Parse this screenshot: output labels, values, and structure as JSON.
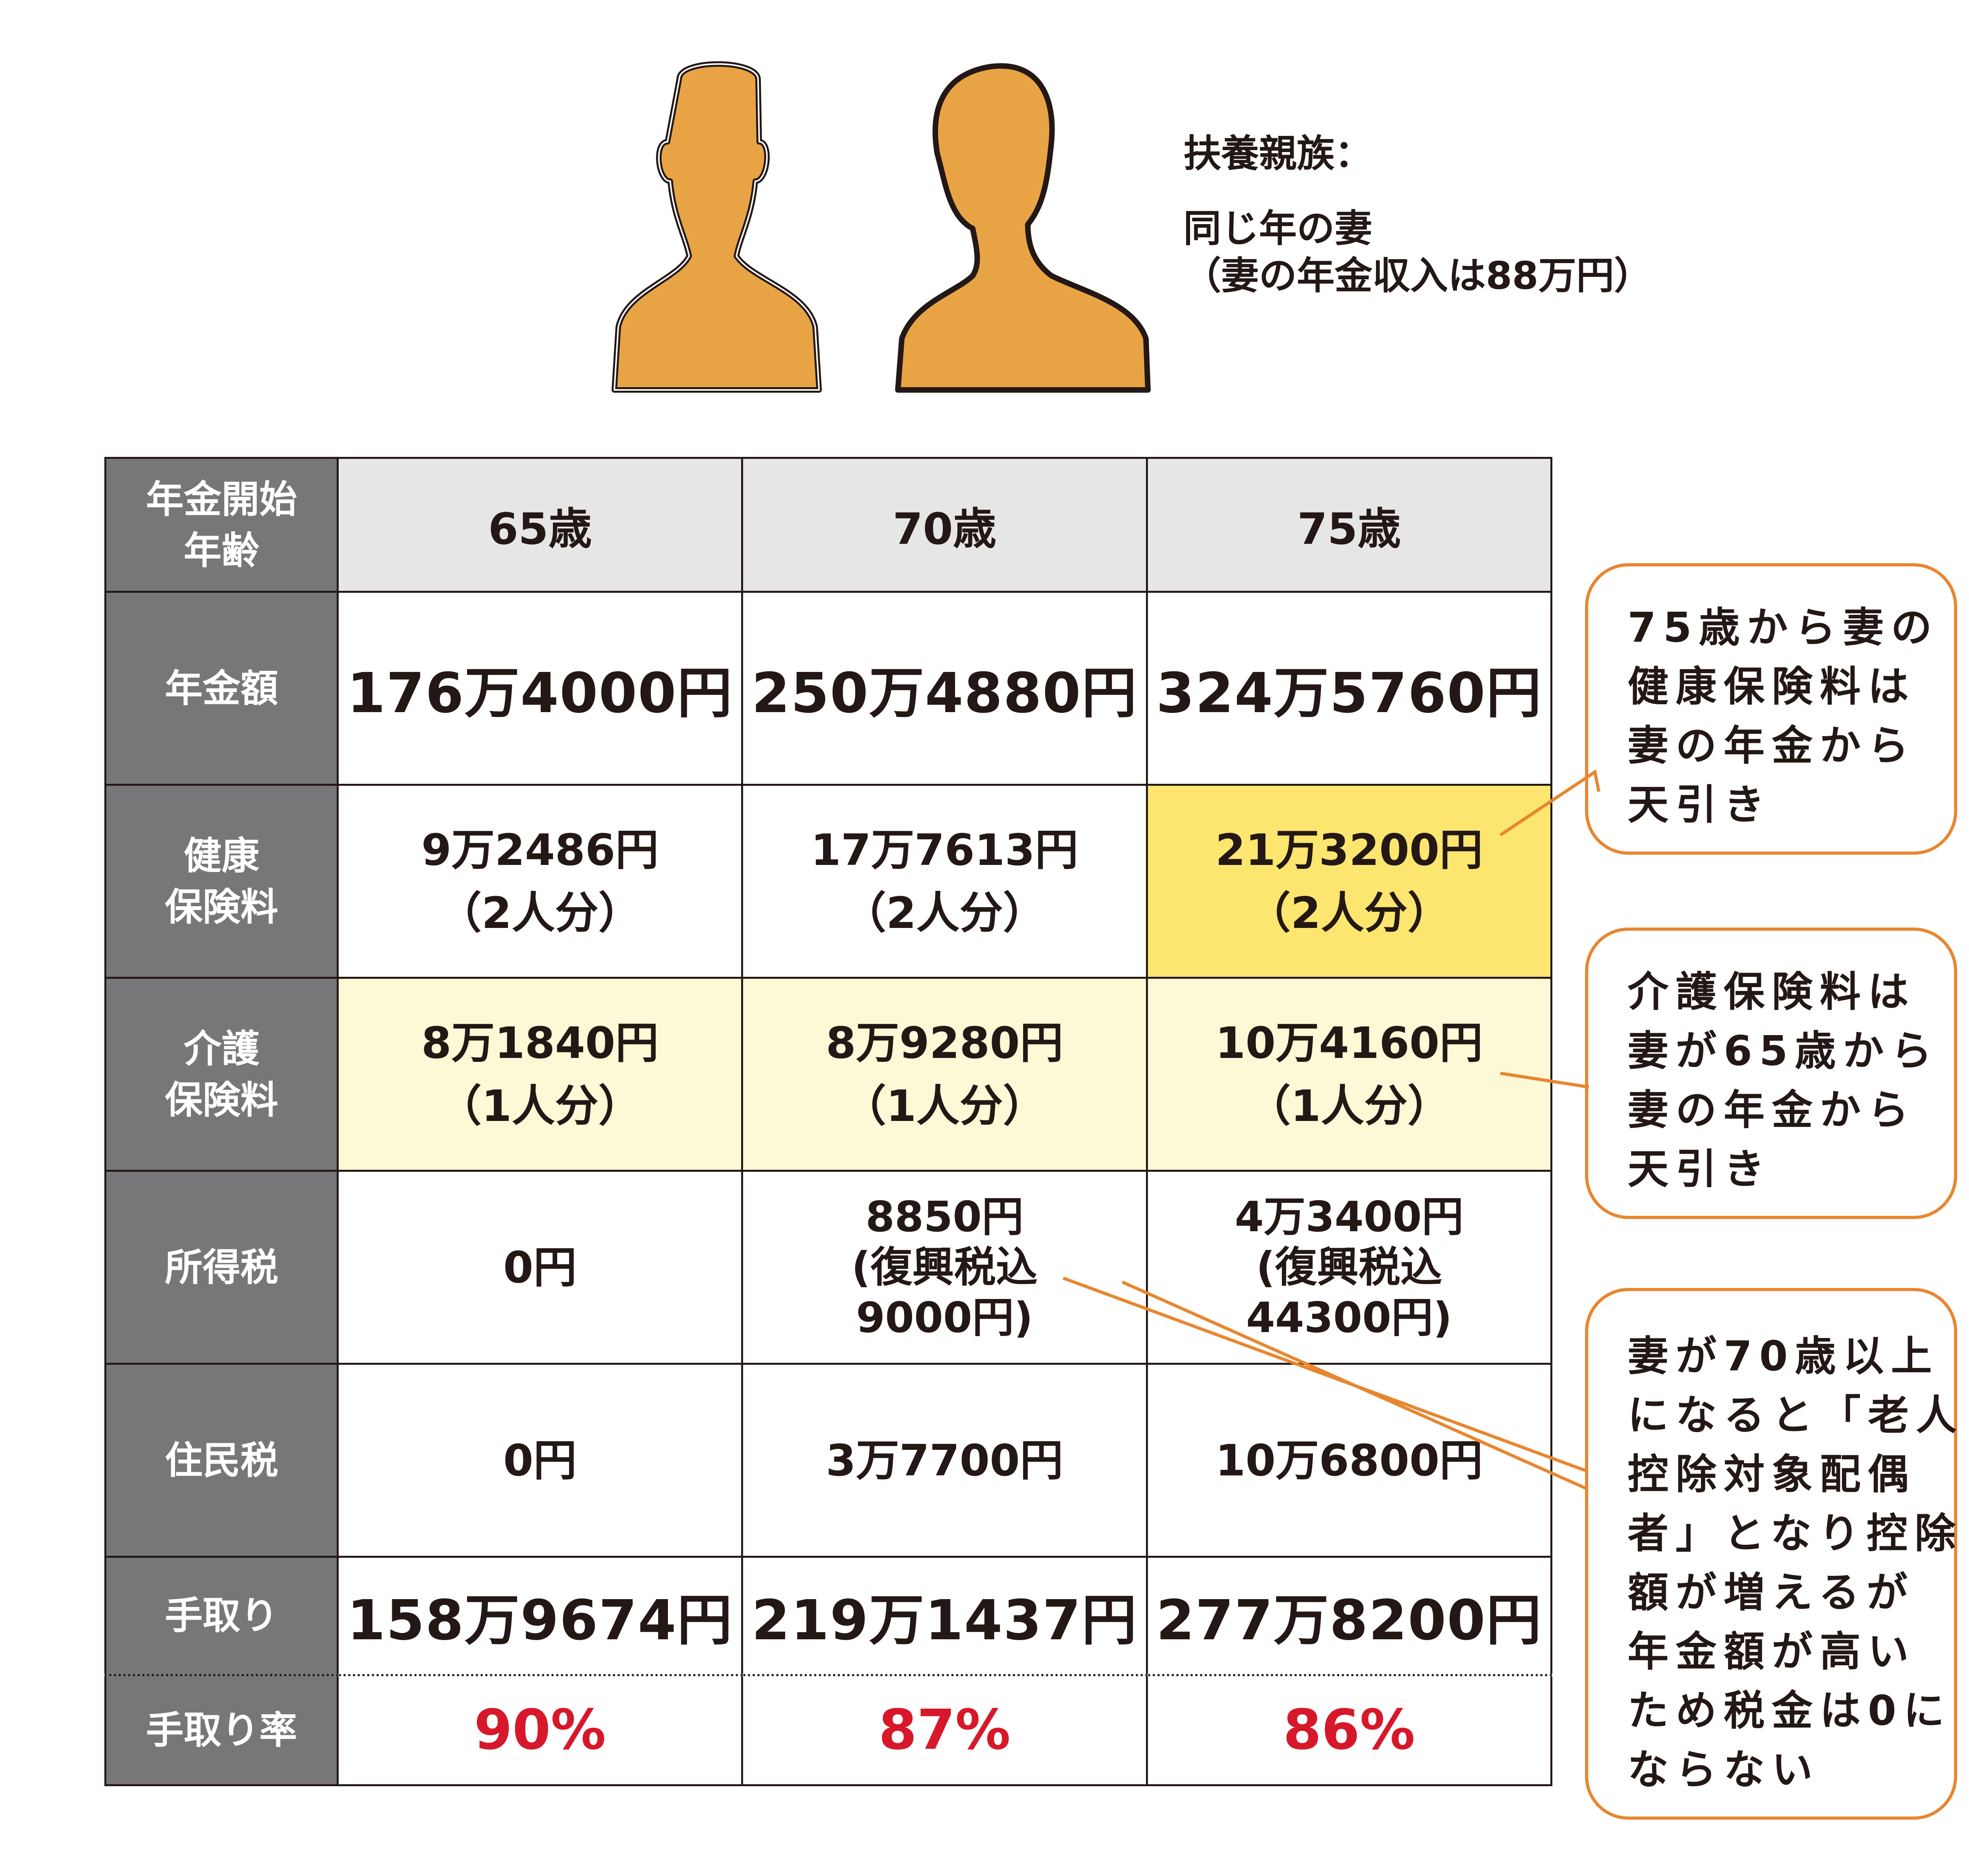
{
  "dependents": {
    "line1": "扶養親族：",
    "line2": "同じ年の妻",
    "line3": "（妻の年金収入は88万円）"
  },
  "table": {
    "header": {
      "label_l1": "年金開始",
      "label_l2": "年齢",
      "col1": "65歳",
      "col2": "70歳",
      "col3": "75歳"
    },
    "pension": {
      "label": "年金額",
      "v1": "176万4000円",
      "v2": "250万4880円",
      "v3": "324万5760円"
    },
    "health": {
      "label_l1": "健康",
      "label_l2": "保険料",
      "v1a": "9万2486円",
      "v1b": "（2人分）",
      "v2a": "17万7613円",
      "v2b": "（2人分）",
      "v3a": "21万3200円",
      "v3b": "（2人分）"
    },
    "care": {
      "label_l1": "介護",
      "label_l2": "保険料",
      "v1a": "8万1840円",
      "v1b": "（1人分）",
      "v2a": "8万9280円",
      "v2b": "（1人分）",
      "v3a": "10万4160円",
      "v3b": "（1人分）"
    },
    "income_tax": {
      "label": "所得税",
      "v1": "0円",
      "v2a": "8850円",
      "v2b": "(復興税込",
      "v2c": "9000円)",
      "v3a": "4万3400円",
      "v3b": "(復興税込",
      "v3c": "44300円)"
    },
    "resident_tax": {
      "label": "住民税",
      "v1": "0円",
      "v2": "3万7700円",
      "v3": "10万6800円"
    },
    "takehome": {
      "label": "手取り",
      "v1": "158万9674円",
      "v2": "219万1437円",
      "v3": "277万8200円"
    },
    "rate": {
      "label": "手取り率",
      "v1": "90%",
      "v2": "87%",
      "v3": "86%"
    }
  },
  "callouts": {
    "health_note": [
      "75歳から妻の",
      "健康保険料は",
      "妻の年金から",
      "天引き"
    ],
    "care_note": [
      "介護保険料は",
      "妻が65歳から",
      "妻の年金から",
      "天引き"
    ],
    "tax_note": [
      "妻が70歳以上",
      "になると「老人",
      "控除対象配偶",
      "者」となり控除",
      "額が増えるが",
      "年金額が高い",
      "ため税金は0に",
      "ならない"
    ]
  },
  "colors": {
    "accent_orange": "#e8862f",
    "figure_fill": "#e8a444",
    "header_gray": "#77777a",
    "highlight_yellow": "#fde66f",
    "pale_yellow": "#fdf8d5",
    "rate_red": "#d7182a"
  },
  "icons": [
    "man-silhouette-icon",
    "woman-silhouette-icon"
  ]
}
